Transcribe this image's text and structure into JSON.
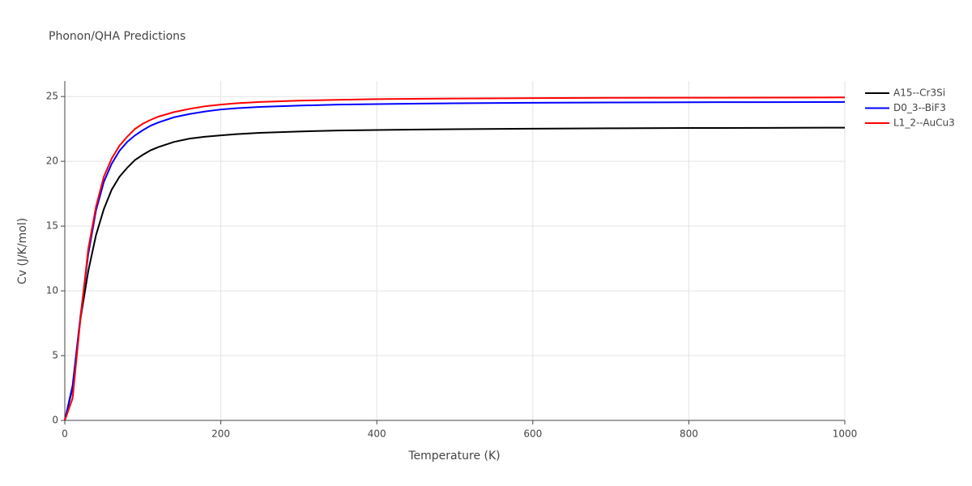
{
  "chart_data": {
    "type": "line",
    "title": "Phonon/QHA Predictions",
    "x_label": "Temperature (K)",
    "y_label": "Cv (J/K/mol)",
    "x": [
      0,
      10,
      20,
      30,
      40,
      50,
      60,
      70,
      80,
      90,
      100,
      110,
      120,
      140,
      160,
      180,
      200,
      220,
      250,
      300,
      350,
      400,
      500,
      600,
      700,
      800,
      900,
      1000
    ],
    "series": [
      {
        "name": "A15--Cr3Si",
        "color": "#000000",
        "values": [
          0,
          2.5,
          7.8,
          11.5,
          14.3,
          16.3,
          17.8,
          18.8,
          19.5,
          20.1,
          20.5,
          20.85,
          21.1,
          21.5,
          21.75,
          21.9,
          22.0,
          22.1,
          22.2,
          22.3,
          22.38,
          22.42,
          22.48,
          22.52,
          22.55,
          22.57,
          22.58,
          22.6
        ]
      },
      {
        "name": "D0_3--BiF3",
        "color": "#0000ff",
        "values": [
          0,
          2.7,
          8.0,
          12.8,
          16.2,
          18.4,
          19.8,
          20.8,
          21.5,
          22.0,
          22.4,
          22.75,
          23.0,
          23.4,
          23.65,
          23.85,
          24.0,
          24.1,
          24.2,
          24.3,
          24.38,
          24.42,
          24.48,
          24.52,
          24.54,
          24.56,
          24.57,
          24.58
        ]
      },
      {
        "name": "L1_2--AuCu3",
        "color": "#ff0000",
        "values": [
          0,
          1.7,
          7.8,
          13.2,
          16.5,
          18.8,
          20.2,
          21.2,
          21.9,
          22.5,
          22.9,
          23.2,
          23.45,
          23.8,
          24.05,
          24.25,
          24.38,
          24.48,
          24.58,
          24.68,
          24.75,
          24.8,
          24.85,
          24.88,
          24.9,
          24.91,
          24.92,
          24.93
        ]
      }
    ],
    "xlim": [
      0,
      1000
    ],
    "xticks": [
      0,
      200,
      400,
      600,
      800,
      1000
    ],
    "ylim": [
      0,
      26.2
    ],
    "yticks": [
      0,
      5,
      10,
      15,
      20,
      25
    ],
    "grid": true,
    "legend": "right"
  }
}
